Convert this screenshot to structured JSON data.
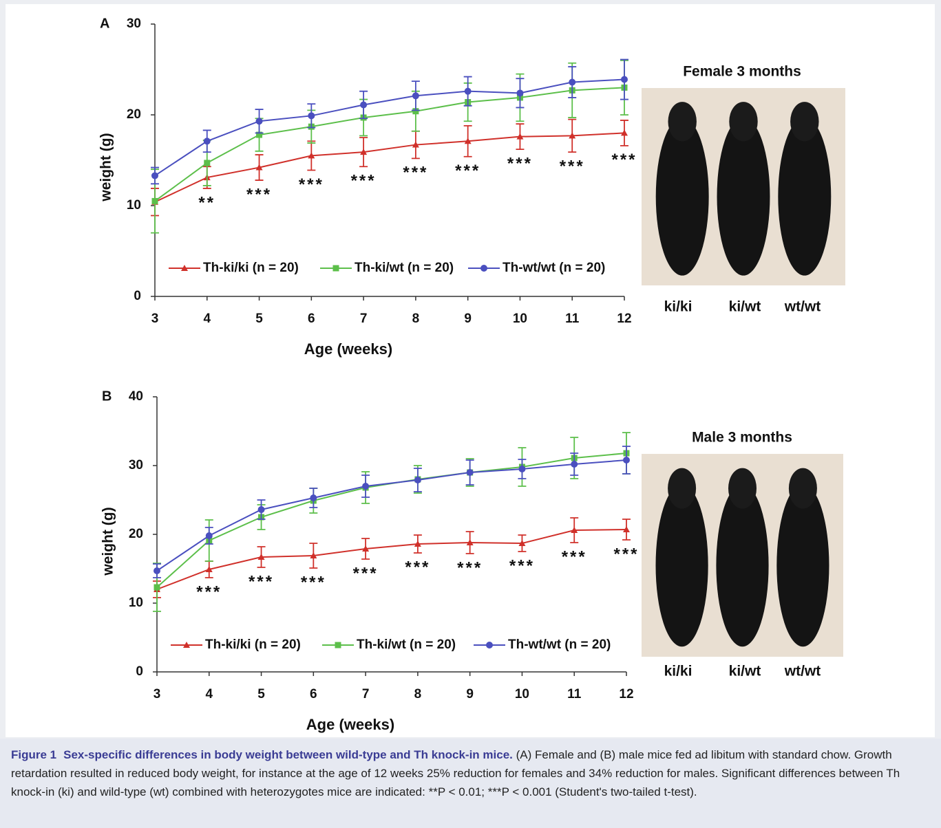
{
  "chart_data": [
    {
      "type": "line",
      "panel_label": "A",
      "ylabel": "weight (g)",
      "xlabel": "Age (weeks)",
      "x": [
        3,
        4,
        5,
        6,
        7,
        8,
        9,
        10,
        11,
        12
      ],
      "xlim": [
        3,
        12
      ],
      "xticks": [
        3,
        4,
        5,
        6,
        7,
        8,
        9,
        10,
        11,
        12
      ],
      "ylim": [
        0,
        30
      ],
      "yticks": [
        0,
        10,
        20,
        30
      ],
      "series": [
        {
          "name": "Th-ki/ki (n = 20)",
          "color": "#d0302a",
          "marker": "triangle",
          "values": [
            10.4,
            13.1,
            14.2,
            15.5,
            15.9,
            16.7,
            17.1,
            17.6,
            17.7,
            18.0
          ],
          "errors": [
            1.5,
            1.2,
            1.4,
            1.6,
            1.6,
            1.5,
            1.7,
            1.4,
            1.8,
            1.4
          ]
        },
        {
          "name": "Th-ki/wt (n = 20)",
          "color": "#5cbf4a",
          "marker": "square",
          "values": [
            10.5,
            14.7,
            17.8,
            18.7,
            19.7,
            20.4,
            21.4,
            21.9,
            22.7,
            23.0
          ],
          "errors": [
            3.5,
            2.5,
            1.8,
            1.8,
            2.0,
            2.2,
            2.1,
            2.6,
            3.0,
            3.0
          ]
        },
        {
          "name": "Th-wt/wt (n = 20)",
          "color": "#4a4fbf",
          "marker": "circle",
          "values": [
            13.3,
            17.1,
            19.3,
            19.9,
            21.1,
            22.1,
            22.6,
            22.4,
            23.6,
            23.9
          ],
          "errors": [
            0.9,
            1.2,
            1.3,
            1.3,
            1.5,
            1.6,
            1.6,
            1.6,
            1.7,
            2.2
          ]
        }
      ],
      "significance": [
        null,
        "**",
        "***",
        "***",
        "***",
        "***",
        "***",
        "***",
        "***",
        "***"
      ],
      "photo_title": "Female 3 months",
      "photo_labels": [
        "ki/ki",
        "ki/wt",
        "wt/wt"
      ]
    },
    {
      "type": "line",
      "panel_label": "B",
      "ylabel": "weight (g)",
      "xlabel": "Age (weeks)",
      "x": [
        3,
        4,
        5,
        6,
        7,
        8,
        9,
        10,
        11,
        12
      ],
      "xlim": [
        3,
        12
      ],
      "xticks": [
        3,
        4,
        5,
        6,
        7,
        8,
        9,
        10,
        11,
        12
      ],
      "ylim": [
        0,
        40
      ],
      "yticks": [
        0,
        10,
        20,
        30,
        40
      ],
      "series": [
        {
          "name": "Th-ki/ki (n = 20)",
          "color": "#d0302a",
          "marker": "triangle",
          "values": [
            12.0,
            14.9,
            16.7,
            16.9,
            17.9,
            18.6,
            18.8,
            18.7,
            20.6,
            20.7
          ],
          "errors": [
            1.2,
            1.2,
            1.5,
            1.8,
            1.5,
            1.3,
            1.6,
            1.2,
            1.8,
            1.5
          ]
        },
        {
          "name": "Th-ki/wt (n = 20)",
          "color": "#5cbf4a",
          "marker": "square",
          "values": [
            12.3,
            19.1,
            22.5,
            24.9,
            26.8,
            28.0,
            29.0,
            29.8,
            31.1,
            31.8
          ],
          "errors": [
            3.5,
            3.0,
            1.8,
            1.8,
            2.3,
            2.0,
            2.0,
            2.8,
            3.0,
            3.0
          ]
        },
        {
          "name": "Th-wt/wt (n = 20)",
          "color": "#4a4fbf",
          "marker": "circle",
          "values": [
            14.7,
            19.8,
            23.6,
            25.3,
            27.0,
            27.9,
            29.0,
            29.5,
            30.2,
            30.8
          ],
          "errors": [
            1.0,
            1.2,
            1.4,
            1.4,
            1.6,
            1.7,
            1.8,
            1.4,
            1.6,
            2.0
          ]
        }
      ],
      "significance": [
        null,
        "***",
        "***",
        "***",
        "***",
        "***",
        "***",
        "***",
        "***",
        "***"
      ],
      "photo_title": "Male 3 months",
      "photo_labels": [
        "ki/ki",
        "ki/wt",
        "wt/wt"
      ]
    }
  ],
  "caption": {
    "label": "Figure 1",
    "title": "Sex-specific differences in body weight between wild-type and Th knock-in mice.",
    "text": "(A) Female and (B) male mice fed ad libitum with standard chow. Growth retardation resulted in reduced body weight, for instance at the age of 12 weeks 25% reduction for females and 34% reduction for males. Significant differences between Th knock-in (ki) and wild-type (wt) combined with heterozygotes mice are indicated: **P < 0.01; ***P < 0.001 (Student's two-tailed t-test)."
  }
}
